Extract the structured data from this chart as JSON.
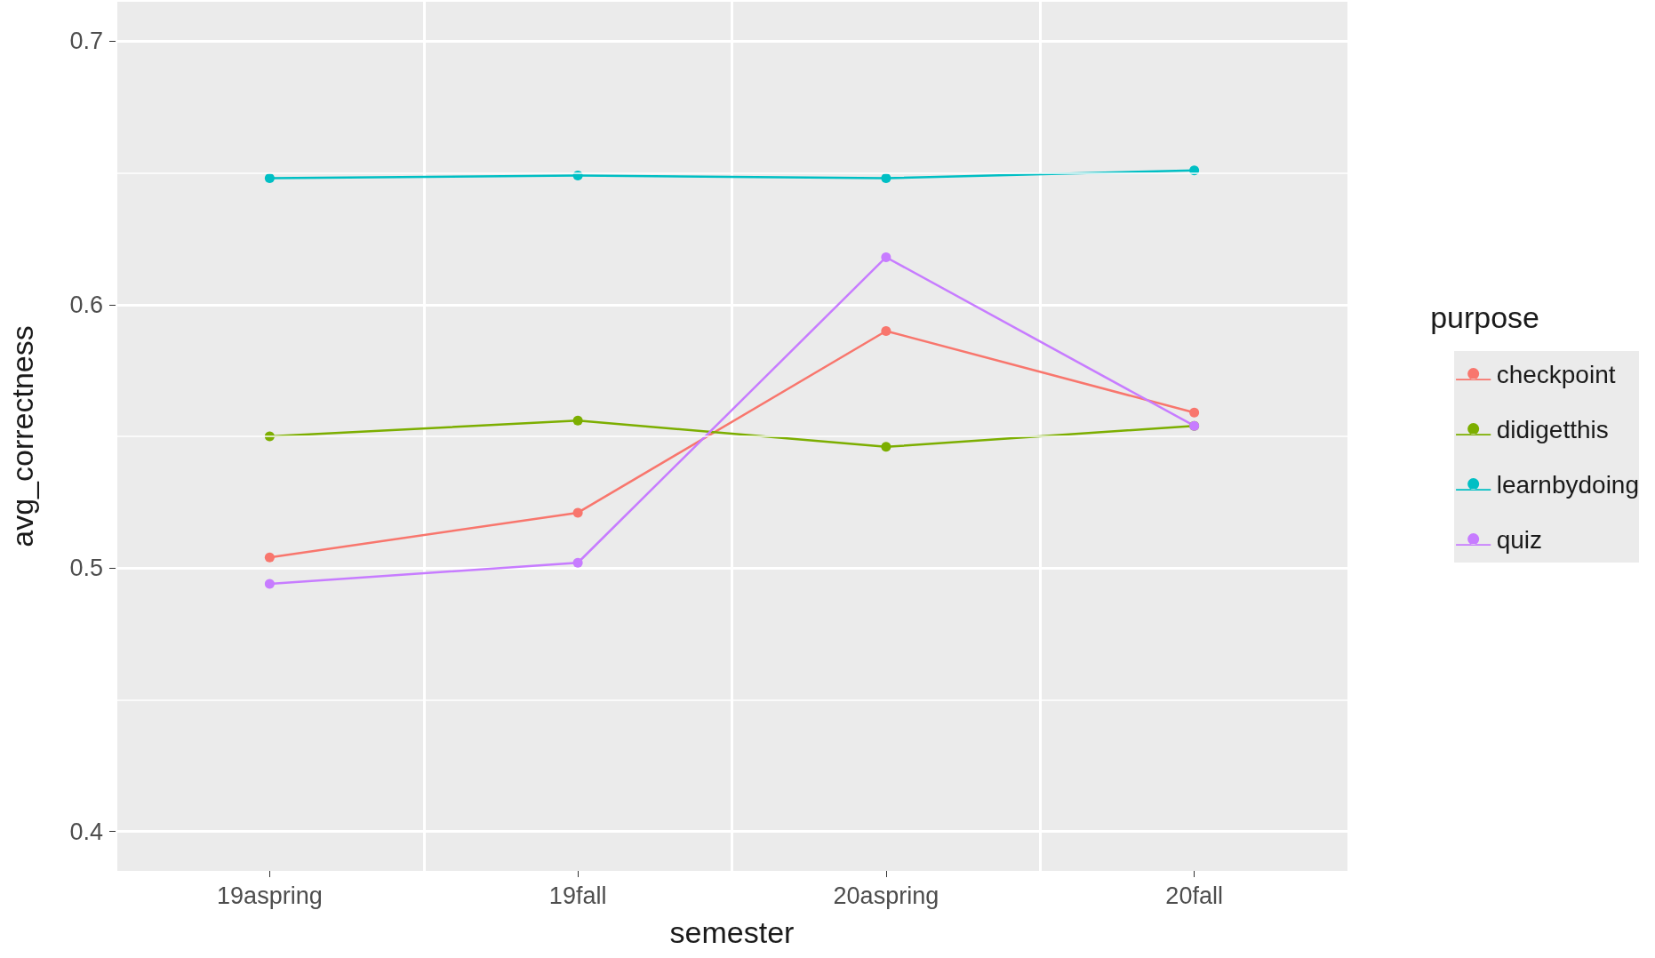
{
  "chart_data": {
    "type": "line",
    "xlabel": "semester",
    "ylabel": "avg_correctness",
    "legend_title": "purpose",
    "categories": [
      "19aspring",
      "19fall",
      "20aspring",
      "20fall"
    ],
    "series": [
      {
        "name": "checkpoint",
        "color": "#f8766d",
        "values": [
          0.504,
          0.521,
          0.59,
          0.559
        ]
      },
      {
        "name": "didigetthis",
        "color": "#7cae00",
        "values": [
          0.55,
          0.556,
          0.546,
          0.554
        ]
      },
      {
        "name": "learnbydoing",
        "color": "#00bfc4",
        "values": [
          0.648,
          0.649,
          0.648,
          0.651
        ]
      },
      {
        "name": "quiz",
        "color": "#c77cff",
        "values": [
          0.494,
          0.502,
          0.618,
          0.554
        ]
      }
    ],
    "ylim": [
      0.385,
      0.715
    ],
    "yticks": [
      0.4,
      0.5,
      0.6,
      0.7
    ],
    "grid": true,
    "legend": "right",
    "marker": "circle",
    "line_style": "solid"
  }
}
